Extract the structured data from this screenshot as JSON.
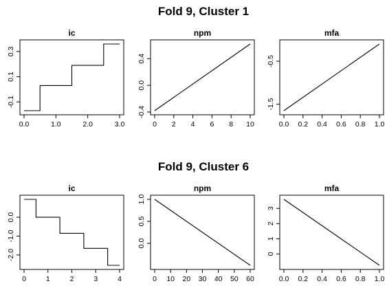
{
  "figure_titles": [
    "Fold 9, Cluster 1",
    "Fold 9, Cluster 6"
  ],
  "chart_data": [
    {
      "type": "line",
      "step": true,
      "title": "ic",
      "x": [
        0.0,
        0.5,
        0.5,
        1.5,
        1.5,
        2.5,
        2.5,
        3.0
      ],
      "y": [
        -0.17,
        -0.17,
        0.03,
        0.03,
        0.19,
        0.19,
        0.36,
        0.36
      ],
      "xlim": [
        0.0,
        3.0
      ],
      "ylim": [
        -0.17,
        0.36
      ],
      "xticks": [
        0.0,
        1.0,
        2.0,
        3.0
      ],
      "xtick_labels": [
        "0.0",
        "1.0",
        "2.0",
        "3.0"
      ],
      "yticks": [
        -0.1,
        0.1,
        0.3
      ],
      "ytick_labels": [
        "-0.1",
        "0.1",
        "0.3"
      ]
    },
    {
      "type": "line",
      "title": "npm",
      "x": [
        0,
        10
      ],
      "y": [
        -0.38,
        0.62
      ],
      "xlim": [
        0,
        10
      ],
      "ylim": [
        -0.38,
        0.62
      ],
      "xticks": [
        0,
        2,
        4,
        6,
        8,
        10
      ],
      "xtick_labels": [
        "0",
        "2",
        "4",
        "6",
        "8",
        "10"
      ],
      "yticks": [
        -0.4,
        0.0,
        0.4
      ],
      "ytick_labels": [
        "-0.4",
        "0.0",
        "0.4"
      ]
    },
    {
      "type": "line",
      "title": "mfa",
      "x": [
        0.0,
        1.0
      ],
      "y": [
        -1.65,
        -0.1
      ],
      "xlim": [
        0.0,
        1.0
      ],
      "ylim": [
        -1.65,
        -0.1
      ],
      "xticks": [
        0.0,
        0.2,
        0.4,
        0.6,
        0.8,
        1.0
      ],
      "xtick_labels": [
        "0.0",
        "0.2",
        "0.4",
        "0.6",
        "0.8",
        "1.0"
      ],
      "yticks": [
        -1.5,
        -0.5
      ],
      "ytick_labels": [
        "-1.5",
        "-0.5"
      ]
    },
    {
      "type": "line",
      "step": true,
      "title": "ic",
      "x": [
        0,
        0.5,
        0.5,
        1.5,
        1.5,
        2.5,
        2.5,
        3.5,
        3.5,
        4
      ],
      "y": [
        0.95,
        0.95,
        0.0,
        0.0,
        -0.85,
        -0.85,
        -1.65,
        -1.65,
        -2.55,
        -2.55
      ],
      "xlim": [
        0,
        4
      ],
      "ylim": [
        -2.55,
        0.95
      ],
      "xticks": [
        0,
        1,
        2,
        3,
        4
      ],
      "xtick_labels": [
        "0",
        "1",
        "2",
        "3",
        "4"
      ],
      "yticks": [
        -2.0,
        -1.0,
        0.0
      ],
      "ytick_labels": [
        "-2.0",
        "-1.0",
        "0.0"
      ]
    },
    {
      "type": "line",
      "title": "npm",
      "x": [
        0,
        60
      ],
      "y": [
        1.0,
        -0.5
      ],
      "xlim": [
        0,
        60
      ],
      "ylim": [
        -0.5,
        1.0
      ],
      "xticks": [
        0,
        10,
        20,
        30,
        40,
        50,
        60
      ],
      "xtick_labels": [
        "0",
        "10",
        "20",
        "30",
        "40",
        "50",
        "60"
      ],
      "yticks": [
        0.0,
        0.5,
        1.0
      ],
      "ytick_labels": [
        "0.0",
        "0.5",
        "1.0"
      ]
    },
    {
      "type": "line",
      "title": "mfa",
      "x": [
        0.0,
        1.0
      ],
      "y": [
        3.6,
        -0.75
      ],
      "xlim": [
        0.0,
        1.0
      ],
      "ylim": [
        -0.75,
        3.6
      ],
      "xticks": [
        0.0,
        0.2,
        0.4,
        0.6,
        0.8,
        1.0
      ],
      "xtick_labels": [
        "0.0",
        "0.2",
        "0.4",
        "0.6",
        "0.8",
        "1.0"
      ],
      "yticks": [
        0,
        1,
        2,
        3
      ],
      "ytick_labels": [
        "0",
        "1",
        "2",
        "3"
      ]
    }
  ]
}
